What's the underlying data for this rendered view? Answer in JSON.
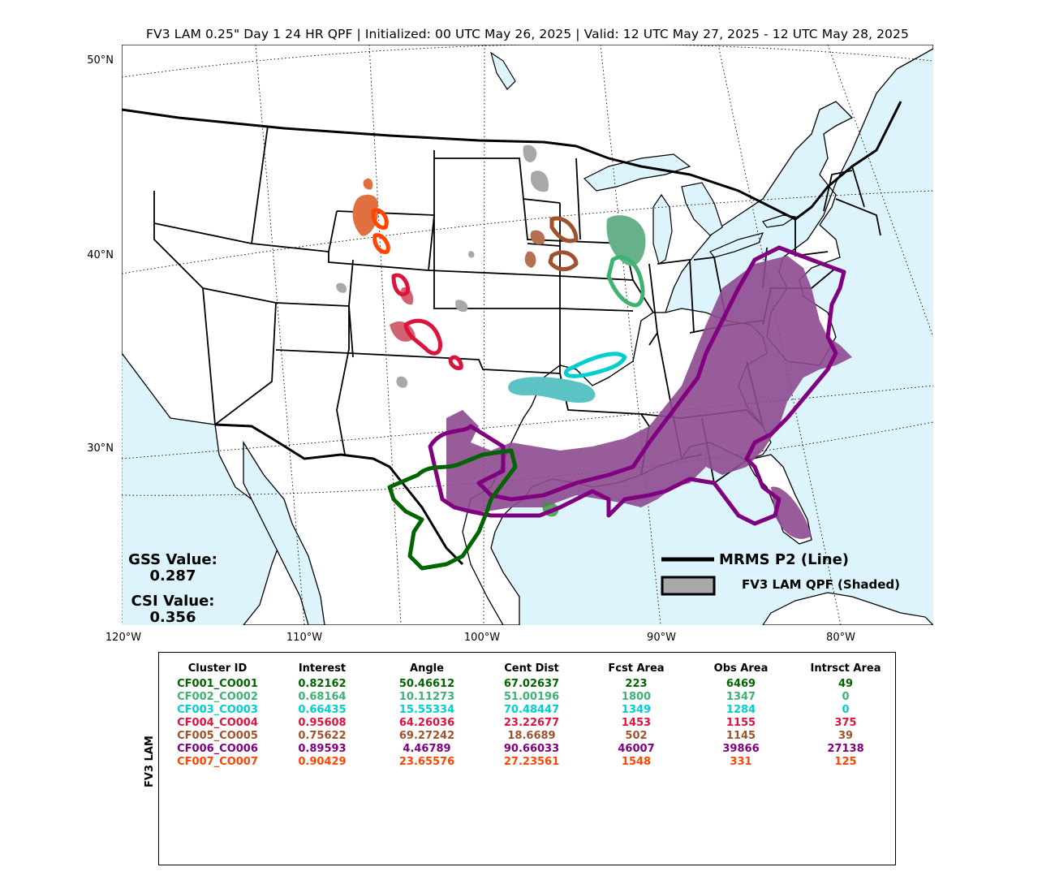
{
  "title": "FV3 LAM 0.25\" Day 1 24 HR QPF | Initialized: 00 UTC May 26, 2025 | Valid: 12 UTC May 27, 2025 - 12 UTC May 28, 2025",
  "lat_labels": [
    "50°N",
    "40°N",
    "30°N"
  ],
  "lon_labels": [
    "120°W",
    "110°W",
    "100°W",
    "90°W",
    "80°W"
  ],
  "stats": {
    "gss_label": "GSS Value:",
    "gss_value": "0.287",
    "csi_label": "CSI Value:",
    "csi_value": "0.356"
  },
  "legend": {
    "obs_label": "MRMS P2 (Line)",
    "fcst_label": "FV3 LAM QPF (Shaded)"
  },
  "colors": {
    "ocean": "#ddf4fd",
    "land": "#ffffff",
    "unmatched": "#a8a8a8",
    "CF001": "#006400",
    "CF002": "#3cb371",
    "CF003": "#00ced1",
    "CF004": "#dc143c",
    "CF005": "#a0522d",
    "CF006": "#800080",
    "CF007": "#ff4500"
  },
  "table": {
    "side_label": "FV3 LAM",
    "headers": [
      "Cluster ID",
      "Interest",
      "Angle",
      "Cent Dist",
      "Fcst Area",
      "Obs Area",
      "Intrsct Area"
    ],
    "rows": [
      {
        "color": "#006400",
        "cells": [
          "CF001_CO001",
          "0.82162",
          "50.46612",
          "67.02637",
          "223",
          "6469",
          "49"
        ]
      },
      {
        "color": "#3cb371",
        "cells": [
          "CF002_CO002",
          "0.68164",
          "10.11273",
          "51.00196",
          "1800",
          "1347",
          "0"
        ]
      },
      {
        "color": "#00ced1",
        "cells": [
          "CF003_CO003",
          "0.66435",
          "15.55334",
          "70.48447",
          "1349",
          "1284",
          "0"
        ]
      },
      {
        "color": "#dc143c",
        "cells": [
          "CF004_CO004",
          "0.95608",
          "64.26036",
          "23.22677",
          "1453",
          "1155",
          "375"
        ]
      },
      {
        "color": "#a0522d",
        "cells": [
          "CF005_CO005",
          "0.75622",
          "69.27242",
          "18.6689",
          "502",
          "1145",
          "39"
        ]
      },
      {
        "color": "#800080",
        "cells": [
          "CF006_CO006",
          "0.89593",
          "4.46789",
          "90.66033",
          "46007",
          "39866",
          "27138"
        ]
      },
      {
        "color": "#ff4500",
        "cells": [
          "CF007_CO007",
          "0.90429",
          "23.65576",
          "27.23561",
          "1548",
          "331",
          "125"
        ]
      }
    ]
  }
}
